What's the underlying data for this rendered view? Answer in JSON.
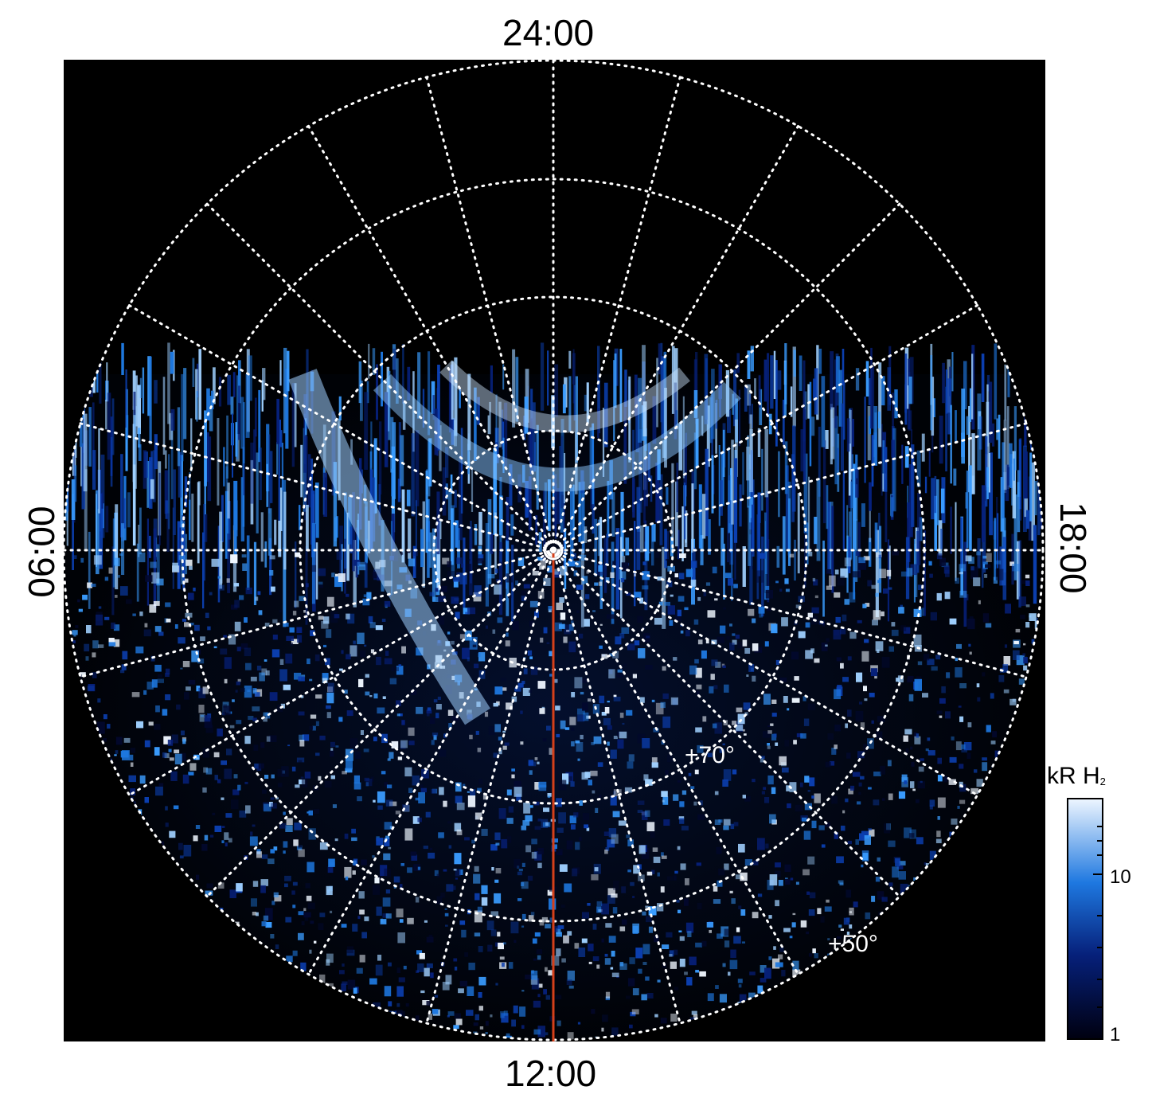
{
  "labels": {
    "top": "24:00",
    "bottom": "12:00",
    "left": "06:00",
    "right": "18:00"
  },
  "latitude_labels": {
    "inner": "+70°",
    "outer": "+50°"
  },
  "colorbar": {
    "title": "kR H",
    "title_sub": "2",
    "tick_high": "10",
    "tick_low": "1",
    "color_low": "#000010",
    "color_mid": "#1e78e0",
    "color_high": "#eef6ff"
  },
  "colors": {
    "background": "#000000",
    "grid": "#ffffff",
    "meridian_line": "#d4401a",
    "aurora": "#3a8ef0"
  }
}
